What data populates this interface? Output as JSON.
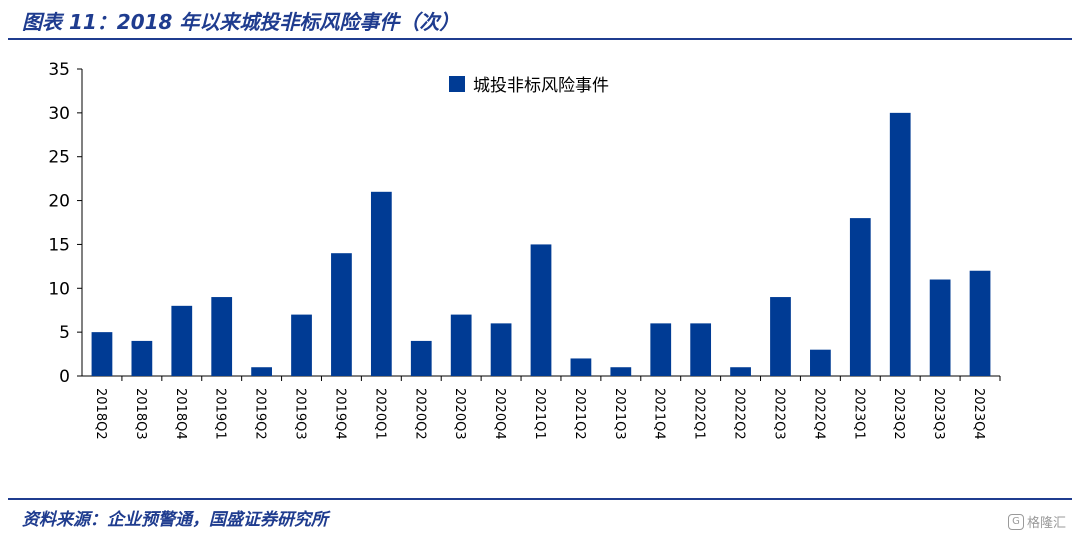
{
  "figure": {
    "title": "图表 11：2018 年以来城投非标风险事件（次）",
    "source": "资料来源：企业预警通，国盛证券研究所",
    "watermark": "格隆汇"
  },
  "colors": {
    "bar": "#003B94",
    "accent": "#1f3c8f"
  },
  "chart_data": {
    "type": "bar",
    "categories": [
      "2018Q2",
      "2018Q3",
      "2018Q4",
      "2019Q1",
      "2019Q2",
      "2019Q3",
      "2019Q4",
      "2020Q1",
      "2020Q2",
      "2020Q3",
      "2020Q4",
      "2021Q1",
      "2021Q2",
      "2021Q3",
      "2021Q4",
      "2022Q1",
      "2022Q2",
      "2022Q3",
      "2022Q4",
      "2023Q1",
      "2023Q2",
      "2023Q3",
      "2023Q4"
    ],
    "series": [
      {
        "name": "城投非标风险事件",
        "values": [
          5,
          4,
          8,
          9,
          1,
          7,
          14,
          21,
          4,
          7,
          6,
          15,
          2,
          1,
          6,
          6,
          1,
          9,
          3,
          18,
          30,
          11,
          12
        ]
      }
    ],
    "ylim": [
      0,
      35
    ],
    "yticks": [
      0,
      5,
      10,
      15,
      20,
      25,
      30,
      35
    ],
    "grid": false,
    "legend": "top-center"
  }
}
